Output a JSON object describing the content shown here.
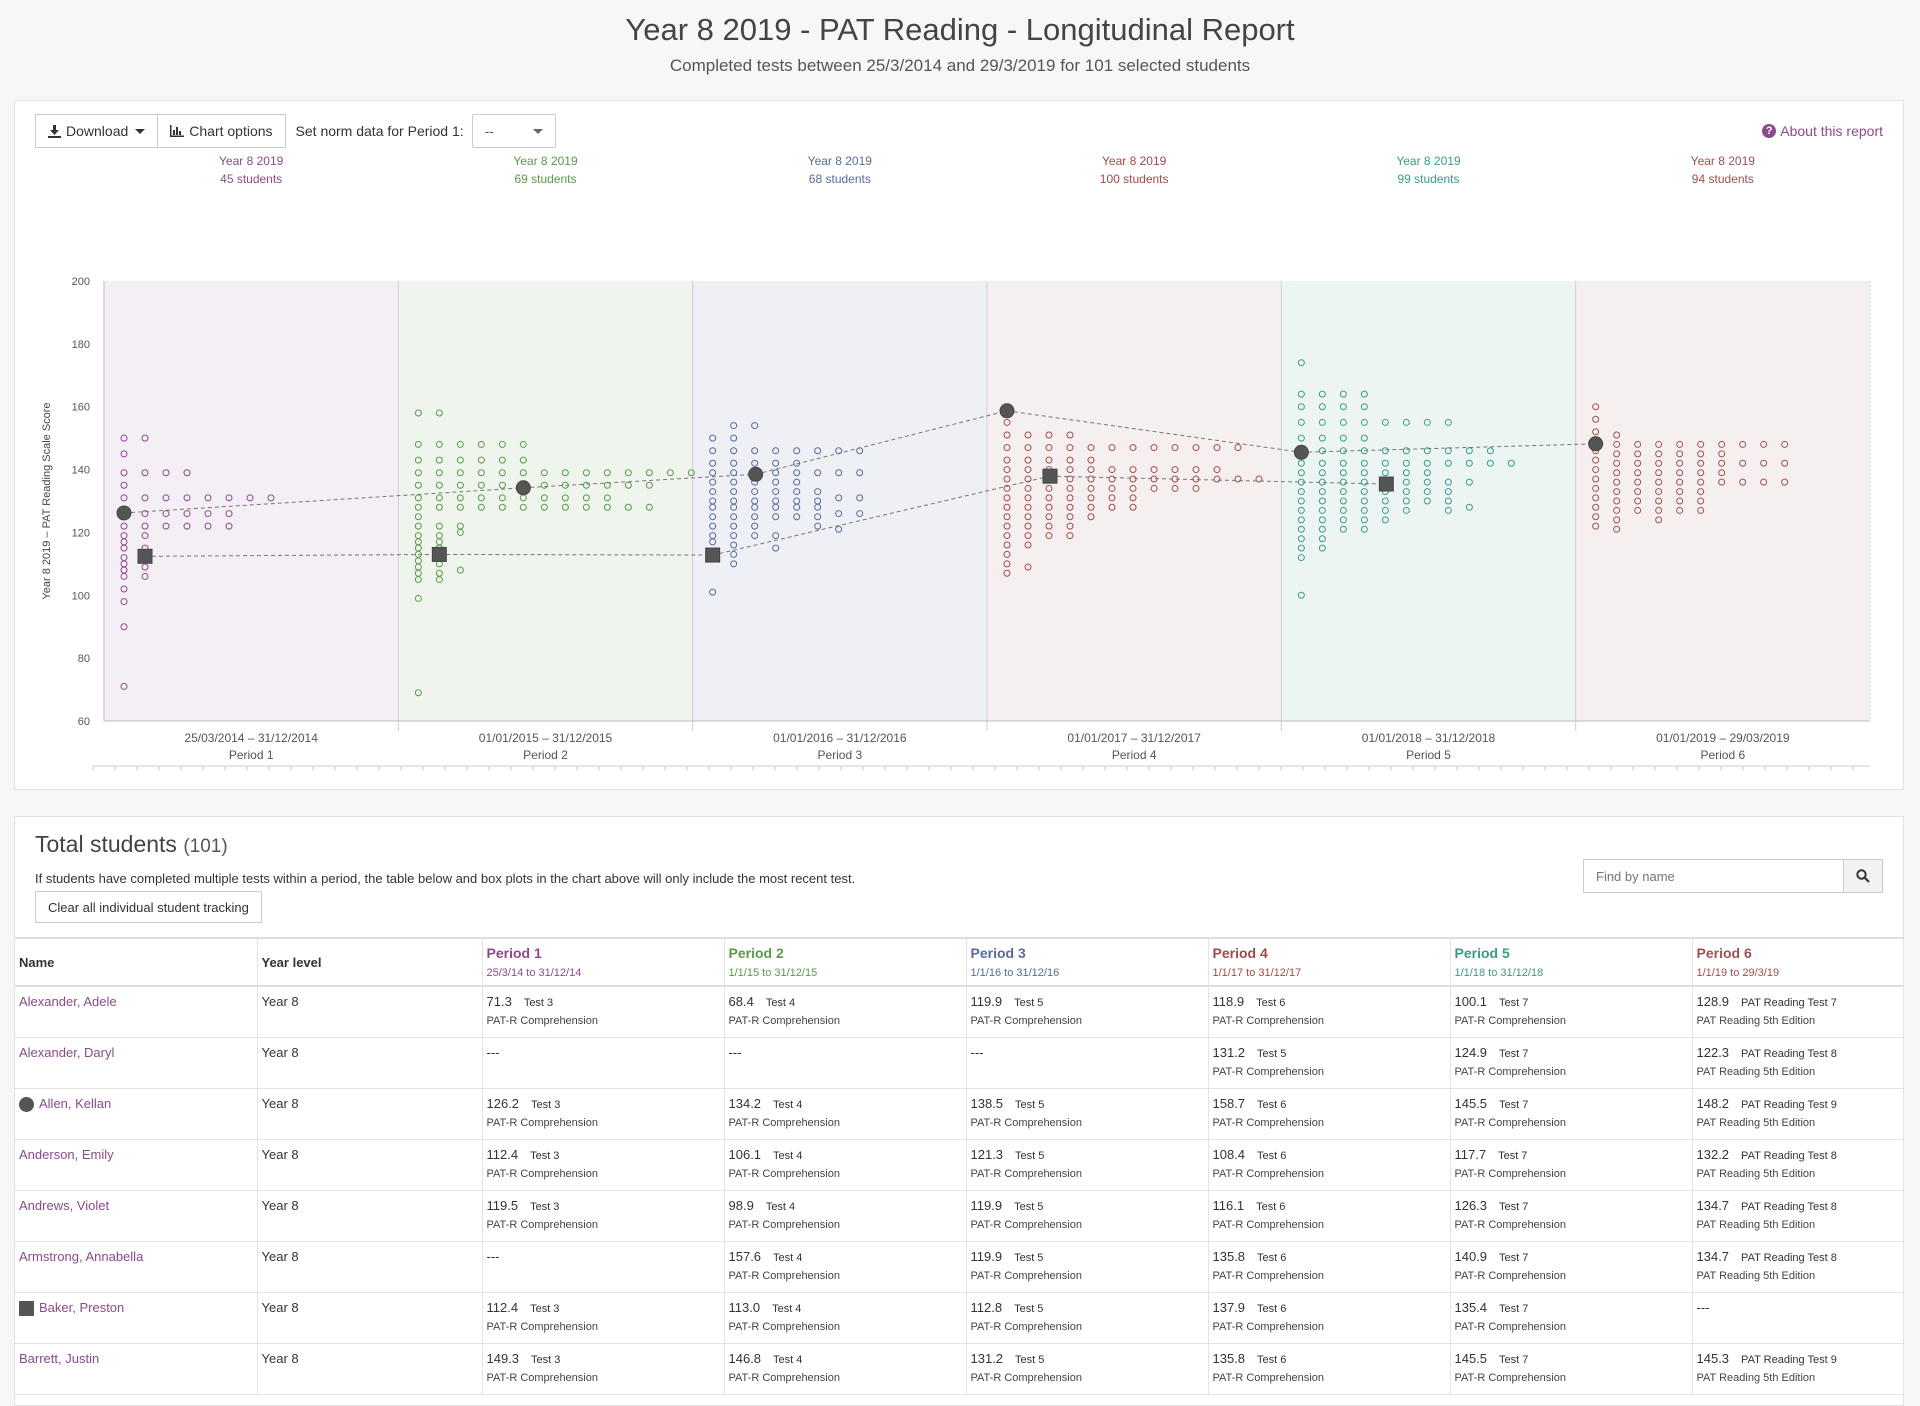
{
  "header": {
    "title": "Year 8 2019 - PAT Reading - Longitudinal Report",
    "subtitle": "Completed tests between 25/3/2014 and 29/3/2019 for 101 selected students"
  },
  "toolbar": {
    "download_label": "Download",
    "chart_options_label": "Chart options",
    "norm_label": "Set norm data for Period 1:",
    "norm_value": "--",
    "about_label": "About this report"
  },
  "colors": {
    "p1": "#8b4a8b",
    "p2": "#5a9a4a",
    "p3": "#5a6a9a",
    "p4": "#a04a4a",
    "p5": "#3a9a8a",
    "p6": "#a05050",
    "link": "#8b4a8b"
  },
  "chart_data": {
    "type": "scatter",
    "ylabel": "Year 8 2019 – PAT Reading Scale Score",
    "ylim": [
      60,
      200
    ],
    "yticks": [
      60,
      80,
      100,
      120,
      140,
      160,
      180,
      200
    ],
    "periods": [
      {
        "top": "Year 8 2019",
        "count": "45 students",
        "dates": "25/03/2014 – 31/12/2014",
        "label": "Period 1",
        "columns": [
          [
            150,
            145,
            139,
            135,
            131,
            126,
            122,
            119,
            117,
            115,
            112,
            110,
            108,
            106,
            102,
            98,
            90,
            71
          ],
          [
            150,
            139,
            131,
            126,
            122,
            119,
            115,
            112,
            109,
            106
          ],
          [
            139,
            131,
            126,
            122
          ],
          [
            139,
            131,
            126,
            122
          ],
          [
            131,
            126,
            122
          ],
          [
            131,
            126,
            122
          ],
          [
            131
          ],
          [
            131
          ]
        ]
      },
      {
        "top": "Year 8 2019",
        "count": "69 students",
        "dates": "01/01/2015 – 31/12/2015",
        "label": "Period 2",
        "columns": [
          [
            158,
            148,
            143,
            139,
            135,
            131,
            128,
            125,
            122,
            119,
            117,
            115,
            113,
            111,
            109,
            107,
            105,
            99,
            69
          ],
          [
            158,
            148,
            143,
            139,
            135,
            131,
            128,
            122,
            119,
            117,
            115,
            112,
            110,
            107,
            105
          ],
          [
            148,
            143,
            139,
            135,
            131,
            128,
            122,
            120,
            108
          ],
          [
            148,
            143,
            139,
            135,
            131,
            128
          ],
          [
            148,
            143,
            139,
            135,
            131,
            128
          ],
          [
            148,
            143,
            139,
            135,
            131,
            128
          ],
          [
            139,
            135,
            131,
            128
          ],
          [
            139,
            135,
            131,
            128
          ],
          [
            139,
            135,
            131,
            128
          ],
          [
            139,
            135,
            131,
            128
          ],
          [
            139,
            135,
            128
          ],
          [
            139,
            135,
            128
          ],
          [
            139
          ],
          [
            139
          ]
        ]
      },
      {
        "top": "Year 8 2019",
        "count": "68 students",
        "dates": "01/01/2016 – 31/12/2016",
        "label": "Period 3",
        "columns": [
          [
            150,
            146,
            142,
            139,
            136,
            133,
            130,
            128,
            125,
            122,
            119,
            117,
            114,
            101
          ],
          [
            154,
            150,
            146,
            142,
            139,
            136,
            133,
            130,
            128,
            125,
            122,
            119,
            116,
            113,
            110
          ],
          [
            154,
            146,
            142,
            139,
            136,
            133,
            130,
            128,
            125,
            122,
            119
          ],
          [
            146,
            142,
            139,
            136,
            133,
            130,
            128,
            125,
            119,
            115
          ],
          [
            146,
            142,
            139,
            136,
            133,
            130,
            128,
            125
          ],
          [
            146,
            139,
            133,
            130,
            128,
            125,
            122
          ],
          [
            146,
            139,
            131,
            126,
            121
          ],
          [
            146,
            139,
            131,
            126
          ]
        ]
      },
      {
        "top": "Year 8 2019",
        "count": "100 students",
        "dates": "01/01/2017 – 31/12/2017",
        "label": "Period 4",
        "columns": [
          [
            155,
            151,
            147,
            143,
            140,
            137,
            134,
            131,
            128,
            125,
            122,
            119,
            116,
            113,
            110,
            107
          ],
          [
            151,
            147,
            143,
            140,
            137,
            134,
            131,
            128,
            125,
            122,
            119,
            116,
            109
          ],
          [
            151,
            147,
            143,
            140,
            137,
            134,
            131,
            128,
            125,
            122,
            119
          ],
          [
            151,
            147,
            143,
            140,
            137,
            134,
            131,
            128,
            125,
            122,
            119
          ],
          [
            147,
            143,
            140,
            137,
            134,
            131,
            128,
            125
          ],
          [
            147,
            140,
            137,
            134,
            131,
            128
          ],
          [
            147,
            140,
            137,
            134,
            131,
            128
          ],
          [
            147,
            140,
            137,
            134
          ],
          [
            147,
            140,
            137,
            134
          ],
          [
            147,
            140,
            137,
            134
          ],
          [
            147,
            140,
            137
          ],
          [
            147,
            137
          ],
          [
            137
          ]
        ]
      },
      {
        "top": "Year 8 2019",
        "count": "99 students",
        "dates": "01/01/2018 – 31/12/2018",
        "label": "Period 5",
        "columns": [
          [
            174,
            164,
            160,
            155,
            150,
            146,
            142,
            139,
            136,
            133,
            130,
            127,
            124,
            121,
            118,
            115,
            112,
            100
          ],
          [
            164,
            160,
            155,
            150,
            146,
            142,
            139,
            136,
            133,
            130,
            127,
            124,
            121,
            118,
            115
          ],
          [
            164,
            160,
            155,
            150,
            146,
            142,
            139,
            136,
            133,
            130,
            127,
            124,
            121
          ],
          [
            164,
            160,
            155,
            150,
            146,
            142,
            139,
            136,
            133,
            130,
            127,
            124,
            121
          ],
          [
            155,
            146,
            142,
            139,
            136,
            133,
            130,
            127,
            124
          ],
          [
            155,
            146,
            142,
            139,
            136,
            133,
            130,
            127
          ],
          [
            155,
            146,
            142,
            139,
            136,
            133,
            130
          ],
          [
            155,
            146,
            142,
            136,
            133,
            130,
            127
          ],
          [
            146,
            142,
            136,
            128
          ],
          [
            146,
            142
          ],
          [
            142
          ]
        ]
      },
      {
        "top": "Year 8 2019",
        "count": "94 students",
        "dates": "01/01/2019 – 29/03/2019",
        "label": "Period 6",
        "columns": [
          [
            160,
            156,
            152,
            149,
            146,
            143,
            140,
            137,
            134,
            131,
            128,
            125,
            122
          ],
          [
            151,
            148,
            145,
            142,
            139,
            136,
            133,
            130,
            127,
            124,
            121
          ],
          [
            148,
            145,
            142,
            139,
            136,
            133,
            130,
            127
          ],
          [
            148,
            145,
            142,
            139,
            136,
            133,
            130,
            127,
            124
          ],
          [
            148,
            145,
            142,
            139,
            136,
            133,
            130,
            127
          ],
          [
            148,
            145,
            142,
            139,
            136,
            133,
            130,
            127
          ],
          [
            148,
            145,
            142,
            139,
            136
          ],
          [
            148,
            142,
            136
          ],
          [
            148,
            142,
            136
          ],
          [
            148,
            142,
            136
          ]
        ]
      }
    ],
    "circle_student": {
      "name": "Allen, Kellan",
      "values": [
        126.2,
        134.2,
        138.5,
        158.7,
        145.5,
        148.2
      ]
    },
    "square_student": {
      "name": "Baker, Preston",
      "values": [
        112.4,
        113.0,
        112.8,
        137.9,
        135.4,
        null
      ]
    }
  },
  "table_section": {
    "title": "Total students",
    "count": "(101)",
    "note": "If students have completed multiple tests within a period, the table below and box plots in the chart above will only include the most recent test.",
    "clear_label": "Clear all individual student tracking",
    "search_placeholder": "Find by name"
  },
  "table": {
    "headers": {
      "name": "Name",
      "year": "Year level"
    },
    "periods": [
      {
        "label": "Period 1",
        "dates": "25/3/14 to 31/12/14"
      },
      {
        "label": "Period 2",
        "dates": "1/1/15 to 31/12/15"
      },
      {
        "label": "Period 3",
        "dates": "1/1/16 to 31/12/16"
      },
      {
        "label": "Period 4",
        "dates": "1/1/17 to 31/12/17"
      },
      {
        "label": "Period 5",
        "dates": "1/1/18 to 31/12/18"
      },
      {
        "label": "Period 6",
        "dates": "1/1/19 to 29/3/19"
      }
    ],
    "rows": [
      {
        "name": "Alexander, Adele",
        "year": "Year 8",
        "marker": "",
        "cells": [
          {
            "score": "71.3",
            "test": "Test 3",
            "sub": "PAT-R Comprehension"
          },
          {
            "score": "68.4",
            "test": "Test 4",
            "sub": "PAT-R Comprehension"
          },
          {
            "score": "119.9",
            "test": "Test 5",
            "sub": "PAT-R Comprehension"
          },
          {
            "score": "118.9",
            "test": "Test 6",
            "sub": "PAT-R Comprehension"
          },
          {
            "score": "100.1",
            "test": "Test 7",
            "sub": "PAT-R Comprehension"
          },
          {
            "score": "128.9",
            "test": "PAT Reading Test 7",
            "sub": "PAT Reading 5th Edition"
          }
        ]
      },
      {
        "name": "Alexander, Daryl",
        "year": "Year 8",
        "marker": "",
        "cells": [
          {
            "score": "---",
            "test": "",
            "sub": ""
          },
          {
            "score": "---",
            "test": "",
            "sub": ""
          },
          {
            "score": "---",
            "test": "",
            "sub": ""
          },
          {
            "score": "131.2",
            "test": "Test 5",
            "sub": "PAT-R Comprehension"
          },
          {
            "score": "124.9",
            "test": "Test 7",
            "sub": "PAT-R Comprehension"
          },
          {
            "score": "122.3",
            "test": "PAT Reading Test 8",
            "sub": "PAT Reading 5th Edition"
          }
        ]
      },
      {
        "name": "Allen, Kellan",
        "year": "Year 8",
        "marker": "circle",
        "cells": [
          {
            "score": "126.2",
            "test": "Test 3",
            "sub": "PAT-R Comprehension"
          },
          {
            "score": "134.2",
            "test": "Test 4",
            "sub": "PAT-R Comprehension"
          },
          {
            "score": "138.5",
            "test": "Test 5",
            "sub": "PAT-R Comprehension"
          },
          {
            "score": "158.7",
            "test": "Test 6",
            "sub": "PAT-R Comprehension"
          },
          {
            "score": "145.5",
            "test": "Test 7",
            "sub": "PAT-R Comprehension"
          },
          {
            "score": "148.2",
            "test": "PAT Reading Test 9",
            "sub": "PAT Reading 5th Edition"
          }
        ]
      },
      {
        "name": "Anderson, Emily",
        "year": "Year 8",
        "marker": "",
        "cells": [
          {
            "score": "112.4",
            "test": "Test 3",
            "sub": "PAT-R Comprehension"
          },
          {
            "score": "106.1",
            "test": "Test 4",
            "sub": "PAT-R Comprehension"
          },
          {
            "score": "121.3",
            "test": "Test 5",
            "sub": "PAT-R Comprehension"
          },
          {
            "score": "108.4",
            "test": "Test 6",
            "sub": "PAT-R Comprehension"
          },
          {
            "score": "117.7",
            "test": "Test 7",
            "sub": "PAT-R Comprehension"
          },
          {
            "score": "132.2",
            "test": "PAT Reading Test 8",
            "sub": "PAT Reading 5th Edition"
          }
        ]
      },
      {
        "name": "Andrews, Violet",
        "year": "Year 8",
        "marker": "",
        "cells": [
          {
            "score": "119.5",
            "test": "Test 3",
            "sub": "PAT-R Comprehension"
          },
          {
            "score": "98.9",
            "test": "Test 4",
            "sub": "PAT-R Comprehension"
          },
          {
            "score": "119.9",
            "test": "Test 5",
            "sub": "PAT-R Comprehension"
          },
          {
            "score": "116.1",
            "test": "Test 6",
            "sub": "PAT-R Comprehension"
          },
          {
            "score": "126.3",
            "test": "Test 7",
            "sub": "PAT-R Comprehension"
          },
          {
            "score": "134.7",
            "test": "PAT Reading Test 8",
            "sub": "PAT Reading 5th Edition"
          }
        ]
      },
      {
        "name": "Armstrong, Annabella",
        "year": "Year 8",
        "marker": "",
        "cells": [
          {
            "score": "---",
            "test": "",
            "sub": ""
          },
          {
            "score": "157.6",
            "test": "Test 4",
            "sub": "PAT-R Comprehension"
          },
          {
            "score": "119.9",
            "test": "Test 5",
            "sub": "PAT-R Comprehension"
          },
          {
            "score": "135.8",
            "test": "Test 6",
            "sub": "PAT-R Comprehension"
          },
          {
            "score": "140.9",
            "test": "Test 7",
            "sub": "PAT-R Comprehension"
          },
          {
            "score": "134.7",
            "test": "PAT Reading Test 8",
            "sub": "PAT Reading 5th Edition"
          }
        ]
      },
      {
        "name": "Baker, Preston",
        "year": "Year 8",
        "marker": "square",
        "cells": [
          {
            "score": "112.4",
            "test": "Test 3",
            "sub": "PAT-R Comprehension"
          },
          {
            "score": "113.0",
            "test": "Test 4",
            "sub": "PAT-R Comprehension"
          },
          {
            "score": "112.8",
            "test": "Test 5",
            "sub": "PAT-R Comprehension"
          },
          {
            "score": "137.9",
            "test": "Test 6",
            "sub": "PAT-R Comprehension"
          },
          {
            "score": "135.4",
            "test": "Test 7",
            "sub": "PAT-R Comprehension"
          },
          {
            "score": "---",
            "test": "",
            "sub": ""
          }
        ]
      },
      {
        "name": "Barrett, Justin",
        "year": "Year 8",
        "marker": "",
        "cells": [
          {
            "score": "149.3",
            "test": "Test 3",
            "sub": "PAT-R Comprehension"
          },
          {
            "score": "146.8",
            "test": "Test 4",
            "sub": "PAT-R Comprehension"
          },
          {
            "score": "131.2",
            "test": "Test 5",
            "sub": "PAT-R Comprehension"
          },
          {
            "score": "135.8",
            "test": "Test 6",
            "sub": "PAT-R Comprehension"
          },
          {
            "score": "145.5",
            "test": "Test 7",
            "sub": "PAT-R Comprehension"
          },
          {
            "score": "145.3",
            "test": "PAT Reading Test 9",
            "sub": "PAT Reading 5th Edition"
          }
        ]
      }
    ]
  }
}
